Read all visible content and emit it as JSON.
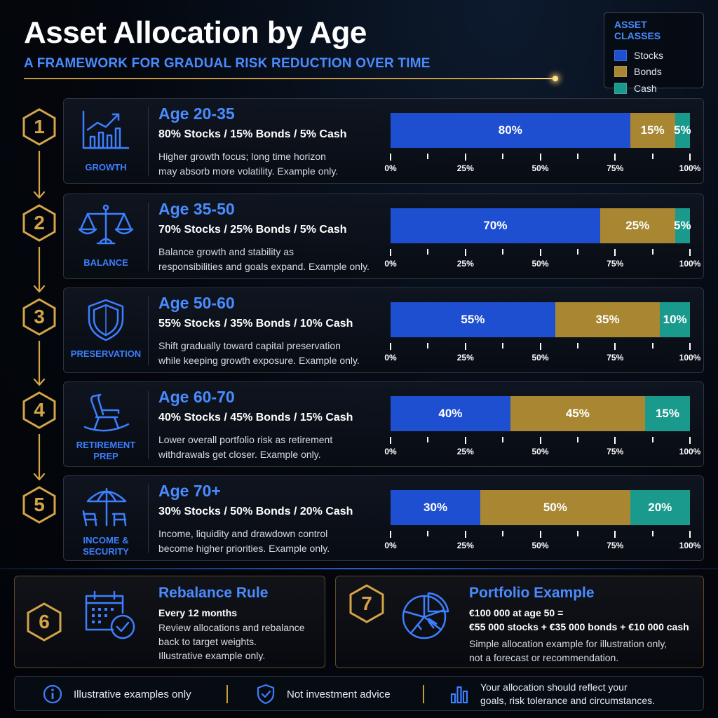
{
  "header": {
    "title": "Asset Allocation by Age",
    "subtitle": "A FRAMEWORK FOR GRADUAL RISK REDUCTION OVER TIME"
  },
  "legend": {
    "title": "ASSET CLASSES",
    "items": [
      {
        "label": "Stocks",
        "color": "#1e4fd1"
      },
      {
        "label": "Bonds",
        "color": "#a88632"
      },
      {
        "label": "Cash",
        "color": "#1a9a8c"
      }
    ]
  },
  "steps": [
    {
      "number": "1",
      "icon": "growth-chart-icon",
      "icon_label": "GROWTH",
      "age": "Age 20-35",
      "mix": "80% Stocks / 15% Bonds / 5% Cash",
      "desc_lines": [
        "Higher growth focus; long time horizon",
        "may absorb more volatility. Example only."
      ]
    },
    {
      "number": "2",
      "icon": "balance-scale-icon",
      "icon_label": "BALANCE",
      "age": "Age 35-50",
      "mix": "70% Stocks / 25% Bonds / 5% Cash",
      "desc_lines": [
        "Balance growth and stability as",
        "responsibilities and goals expand. Example only."
      ]
    },
    {
      "number": "3",
      "icon": "shield-icon",
      "icon_label": "PRESERVATION",
      "age": "Age 50-60",
      "mix": "55% Stocks / 35% Bonds / 10% Cash",
      "desc_lines": [
        "Shift gradually toward capital preservation",
        "while keeping growth exposure. Example only."
      ]
    },
    {
      "number": "4",
      "icon": "rocking-chair-icon",
      "icon_label_lines": [
        "RETIREMENT",
        "PREP"
      ],
      "age": "Age 60-70",
      "mix": "40% Stocks / 45% Bonds / 15% Cash",
      "desc_lines": [
        "Lower overall portfolio risk as retirement",
        "withdrawals get closer. Example only."
      ]
    },
    {
      "number": "5",
      "icon": "beach-umbrella-icon",
      "icon_label_lines": [
        "INCOME &",
        "SECURITY"
      ],
      "age": "Age 70+",
      "mix": "30% Stocks / 50% Bonds / 20% Cash",
      "desc_lines": [
        "Income, liquidity and drawdown control",
        "become higher priorities. Example only."
      ]
    }
  ],
  "chart_data": {
    "type": "bar",
    "orientation": "horizontal",
    "stacked": true,
    "categories": [
      "Age 20-35",
      "Age 35-50",
      "Age 50-60",
      "Age 60-70",
      "Age 70+"
    ],
    "series": [
      {
        "name": "Stocks",
        "values": [
          80,
          70,
          55,
          40,
          30
        ],
        "color": "#1e4fd1"
      },
      {
        "name": "Bonds",
        "values": [
          15,
          25,
          35,
          45,
          50
        ],
        "color": "#a88632"
      },
      {
        "name": "Cash",
        "values": [
          5,
          5,
          10,
          15,
          20
        ],
        "color": "#1a9a8c"
      }
    ],
    "xlim": [
      0,
      100
    ],
    "xticks": [
      "0%",
      "25%",
      "50%",
      "75%",
      "100%"
    ],
    "data_label_suffix": "%",
    "legend_position": "top-right",
    "grid": false
  },
  "rebalance": {
    "number": "6",
    "icon": "calendar-clock-icon",
    "title": "Rebalance Rule",
    "bold_line": "Every 12 months",
    "lines": [
      "Review allocations and rebalance",
      "back to target weights.",
      "Illustrative example only."
    ]
  },
  "portfolio": {
    "number": "7",
    "icon": "pie-chart-icon",
    "title": "Portfolio Example",
    "bold_lines": [
      "€100 000 at age 50 =",
      "€55 000 stocks + €35 000 bonds + €10 000 cash"
    ],
    "lines": [
      "Simple allocation example for illustration only,",
      "not a forecast or recommendation."
    ]
  },
  "footer": {
    "items": [
      {
        "icon": "info-icon",
        "text": "Illustrative examples only"
      },
      {
        "icon": "shield-check-icon",
        "text": "Not investment advice"
      },
      {
        "icon": "bar-chart-icon",
        "lines": [
          "Your allocation should reflect your",
          "goals, risk tolerance and circumstances."
        ]
      }
    ]
  }
}
